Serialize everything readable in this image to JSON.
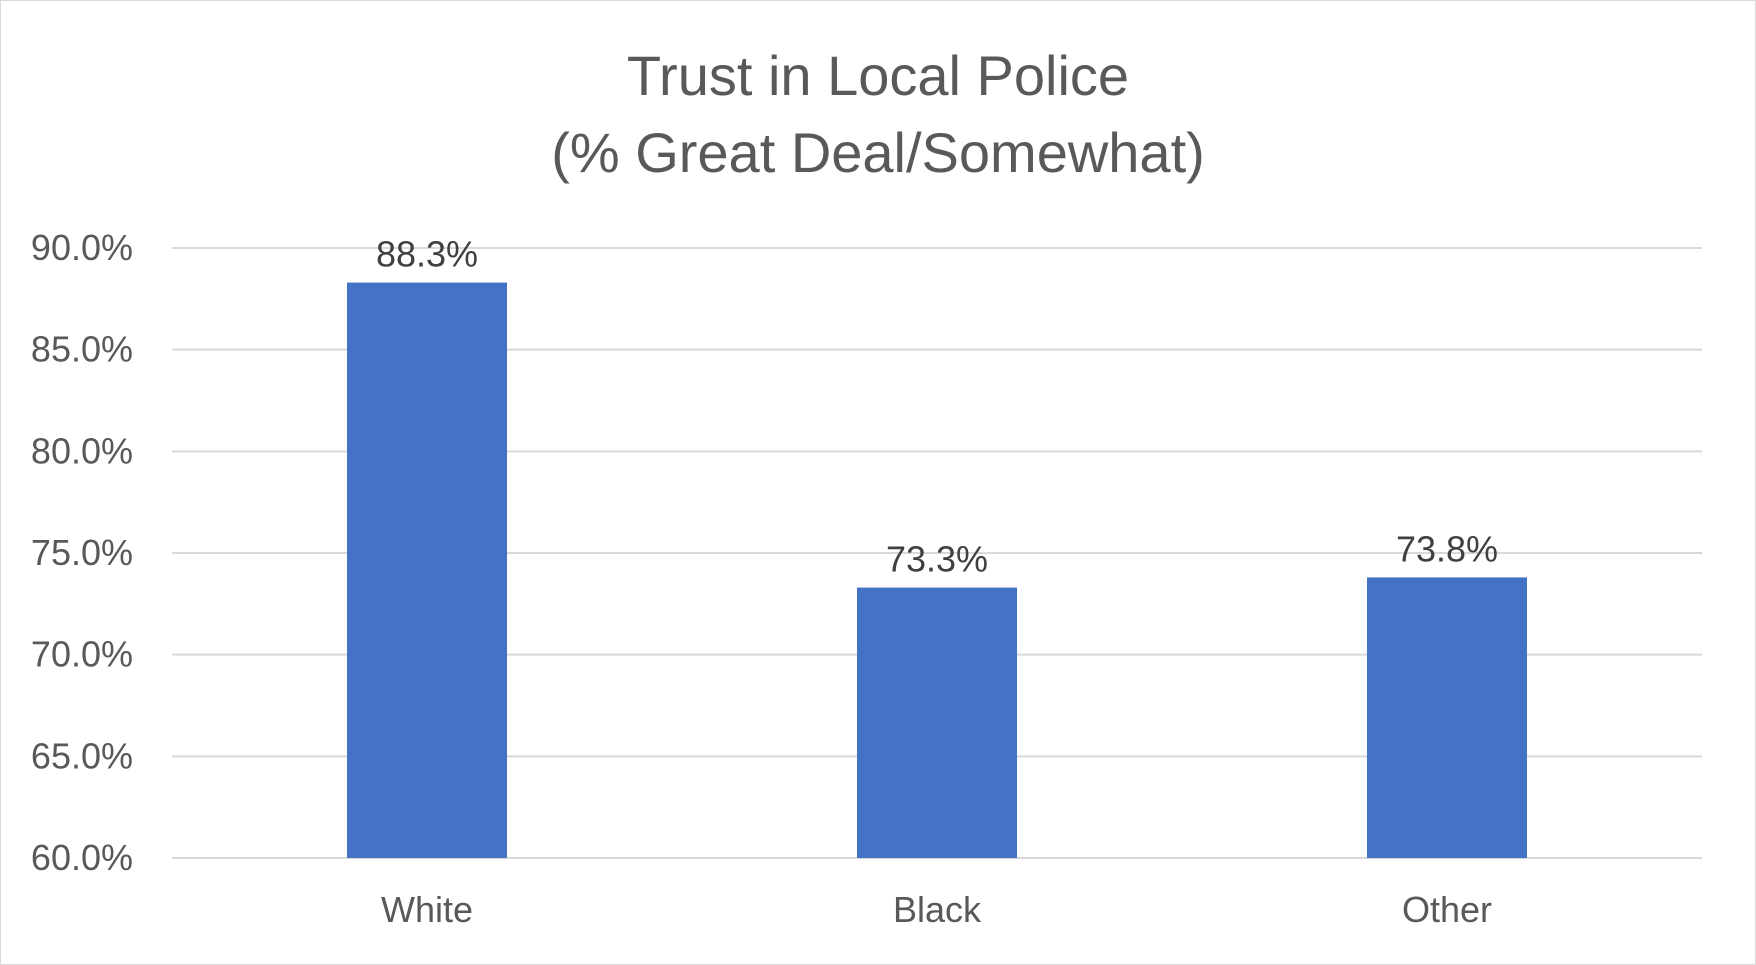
{
  "chart_data": {
    "type": "bar",
    "title": [
      "Trust in Local Police",
      "(% Great Deal/Somewhat)"
    ],
    "categories": [
      "White",
      "Black",
      "Other"
    ],
    "values": [
      88.3,
      73.3,
      73.8
    ],
    "data_labels": [
      "88.3%",
      "73.3%",
      "73.8%"
    ],
    "ylim": [
      60,
      90
    ],
    "yticks": [
      60,
      65,
      70,
      75,
      80,
      85,
      90
    ],
    "ytick_labels": [
      "60.0%",
      "65.0%",
      "70.0%",
      "75.0%",
      "80.0%",
      "85.0%",
      "90.0%"
    ],
    "xlabel": "",
    "ylabel": "",
    "grid": true,
    "legend": "none",
    "bar_color": "#4472C4",
    "grid_color": "#d9d9d9"
  }
}
